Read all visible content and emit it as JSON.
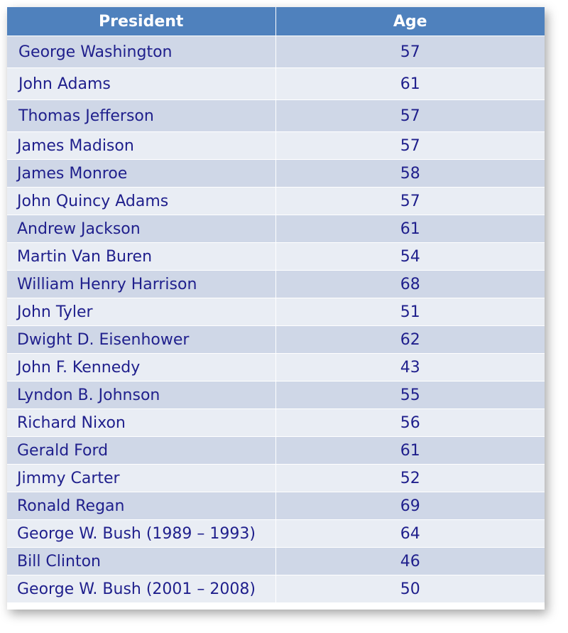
{
  "table": {
    "headers": [
      "President",
      "Age"
    ],
    "rows": [
      {
        "president": "George Washington",
        "age": "57"
      },
      {
        "president": "John Adams",
        "age": "61"
      },
      {
        "president": "Thomas Jefferson",
        "age": "57"
      },
      {
        "president": "James Madison",
        "age": "57"
      },
      {
        "president": "James Monroe",
        "age": "58"
      },
      {
        "president": "John Quincy Adams",
        "age": "57"
      },
      {
        "president": "Andrew Jackson",
        "age": "61"
      },
      {
        "president": "Martin Van Buren",
        "age": "54"
      },
      {
        "president": "William Henry Harrison",
        "age": "68"
      },
      {
        "president": "John Tyler",
        "age": "51"
      },
      {
        "president": "Dwight D. Eisenhower",
        "age": "62"
      },
      {
        "president": "John F. Kennedy",
        "age": "43"
      },
      {
        "president": "Lyndon B. Johnson",
        "age": "55"
      },
      {
        "president": "Richard Nixon",
        "age": "56"
      },
      {
        "president": "Gerald Ford",
        "age": "61"
      },
      {
        "president": "Jimmy Carter",
        "age": "52"
      },
      {
        "president": "Ronald Regan",
        "age": "69"
      },
      {
        "president": "George W. Bush (1989 – 1993)",
        "age": "64"
      },
      {
        "president": "Bill Clinton",
        "age": "46"
      },
      {
        "president": "George W. Bush (2001 – 2008)",
        "age": "50"
      }
    ]
  },
  "colors": {
    "header_bg": "#4f81bd",
    "header_text": "#ffffff",
    "row_band_dark": "#cfd7e7",
    "row_band_light": "#e9edf4",
    "cell_text": "#1f1f8c"
  }
}
